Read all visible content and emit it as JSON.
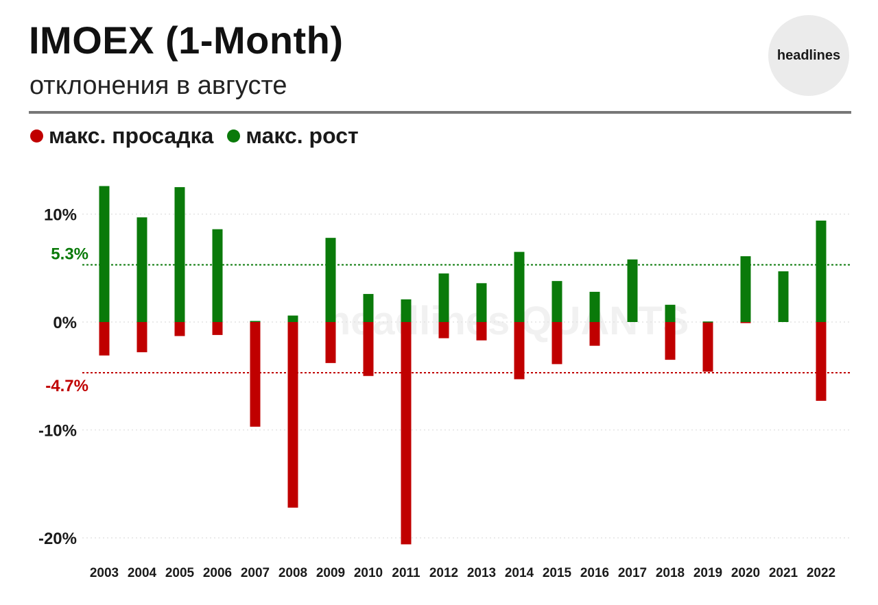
{
  "header": {
    "title": "IMOEX (1-Month)",
    "subtitle": "отклонения в августе",
    "badge": "headlines"
  },
  "legend": [
    {
      "label": "макс. просадка",
      "color": "#c00000"
    },
    {
      "label": "макс. рост",
      "color": "#0a7a0a"
    }
  ],
  "watermark": "headlines QUANTS",
  "chart_data": {
    "type": "bar",
    "categories": [
      "2003",
      "2004",
      "2005",
      "2006",
      "2007",
      "2008",
      "2009",
      "2010",
      "2011",
      "2012",
      "2013",
      "2014",
      "2015",
      "2016",
      "2017",
      "2018",
      "2019",
      "2020",
      "2021",
      "2022"
    ],
    "series": [
      {
        "name": "макс. просадка",
        "color": "#c00000",
        "values": [
          -3.1,
          -2.8,
          -1.3,
          -1.2,
          -9.7,
          -17.2,
          -3.8,
          -5.0,
          -20.6,
          -1.5,
          -1.7,
          -5.3,
          -3.9,
          -2.2,
          0,
          -3.5,
          -4.6,
          -0.1,
          0,
          -7.3
        ]
      },
      {
        "name": "макс. рост",
        "color": "#0a7a0a",
        "values": [
          12.6,
          9.7,
          12.5,
          8.6,
          0.1,
          0.6,
          7.8,
          2.6,
          2.1,
          4.5,
          3.6,
          6.5,
          3.8,
          2.8,
          5.8,
          1.6,
          0.05,
          6.1,
          4.7,
          9.4
        ]
      }
    ],
    "yticks": [
      {
        "value": 10,
        "label": "10%"
      },
      {
        "value": 0,
        "label": "0%"
      },
      {
        "value": -10,
        "label": "-10%"
      },
      {
        "value": -20,
        "label": "-20%"
      }
    ],
    "reference_lines": [
      {
        "value": 5.3,
        "label": "5.3%",
        "color": "#0a7a0a"
      },
      {
        "value": -4.7,
        "label": "-4.7%",
        "color": "#c00000"
      }
    ],
    "ylim": [
      -21,
      13
    ],
    "grid": true
  }
}
